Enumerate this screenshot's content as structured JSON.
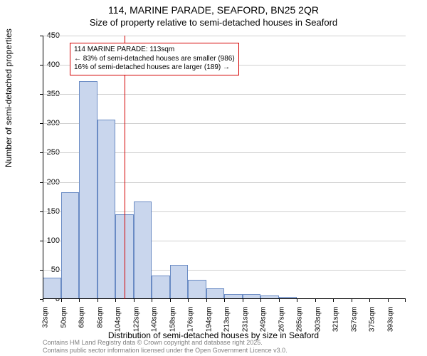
{
  "title": "114, MARINE PARADE, SEAFORD, BN25 2QR",
  "subtitle": "Size of property relative to semi-detached houses in Seaford",
  "y_axis_label": "Number of semi-detached properties",
  "x_axis_label": "Distribution of semi-detached houses by size in Seaford",
  "attribution_line1": "Contains HM Land Registry data © Crown copyright and database right 2025.",
  "attribution_line2": "Contains public sector information licensed under the Open Government Licence v3.0.",
  "chart": {
    "type": "histogram",
    "ylim": [
      0,
      450
    ],
    "ytick_step": 50,
    "background_color": "#ffffff",
    "grid_color": "#d0d0d0",
    "bar_fill": "#c9d6ed",
    "bar_border": "#6a8bc4",
    "marker_color": "#d40000",
    "annotation_border": "#d40000",
    "x_categories": [
      "32sqm",
      "50sqm",
      "68sqm",
      "86sqm",
      "104sqm",
      "122sqm",
      "140sqm",
      "158sqm",
      "176sqm",
      "194sqm",
      "213sqm",
      "231sqm",
      "249sqm",
      "267sqm",
      "285sqm",
      "303sqm",
      "321sqm",
      "357sqm",
      "375sqm",
      "393sqm"
    ],
    "values": [
      36,
      182,
      372,
      307,
      145,
      167,
      40,
      58,
      33,
      18,
      8,
      8,
      6,
      4,
      0,
      0,
      0,
      0,
      0,
      0
    ],
    "marker_position_index": 4.5,
    "annotation": {
      "line1": "114 MARINE PARADE: 113sqm",
      "line2": "← 83% of semi-detached houses are smaller (986)",
      "line3": "16% of semi-detached houses are larger (189) →"
    }
  }
}
